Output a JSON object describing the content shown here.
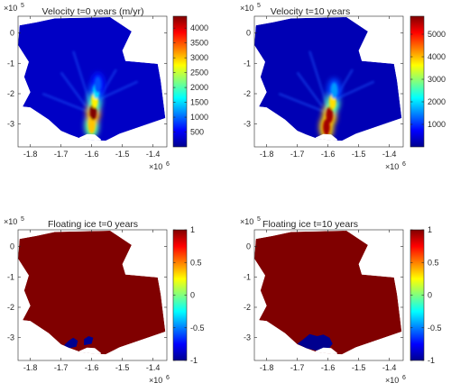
{
  "chart_data": [
    {
      "type": "heatmap",
      "title": "Velocity t=0 years (m/yr)",
      "x_exponent_label": "×10",
      "x_exponent": "6",
      "y_exponent_label": "×10",
      "y_exponent": "5",
      "xlim": [
        -1.84,
        -1.355
      ],
      "ylim": [
        -3.75,
        0.55
      ],
      "x_ticks": [
        -1.8,
        -1.7,
        -1.6,
        -1.5,
        -1.4
      ],
      "x_tick_labels": [
        "-1.8",
        "-1.7",
        "-1.6",
        "-1.5",
        "-1.4"
      ],
      "y_ticks": [
        0,
        -1,
        -2,
        -3
      ],
      "y_tick_labels": [
        "0",
        "-1",
        "-2",
        "-3"
      ],
      "colorbar": {
        "colormap": "jet",
        "range": [
          0,
          4400
        ],
        "ticks": [
          500,
          1000,
          1500,
          2000,
          2500,
          3000,
          3500,
          4000
        ],
        "tick_labels": [
          "500",
          "1000",
          "1500",
          "2000",
          "2500",
          "3000",
          "3500",
          "4000"
        ]
      },
      "field": {
        "background_value": 300,
        "streak": [
          {
            "x": -1.6,
            "y": -3.05,
            "value": 3000
          },
          {
            "x": -1.595,
            "y": -2.6,
            "value": 4400
          },
          {
            "x": -1.59,
            "y": -2.2,
            "value": 2800
          },
          {
            "x": -1.585,
            "y": -1.9,
            "value": 1500
          },
          {
            "x": -1.58,
            "y": -1.7,
            "value": 900
          }
        ]
      }
    },
    {
      "type": "heatmap",
      "title": "Velocity t=10 years",
      "x_exponent_label": "×10",
      "x_exponent": "6",
      "y_exponent_label": "×10",
      "y_exponent": "5",
      "xlim": [
        -1.84,
        -1.355
      ],
      "ylim": [
        -3.75,
        0.55
      ],
      "x_ticks": [
        -1.8,
        -1.7,
        -1.6,
        -1.5,
        -1.4
      ],
      "x_tick_labels": [
        "-1.8",
        "-1.7",
        "-1.6",
        "-1.5",
        "-1.4"
      ],
      "y_ticks": [
        0,
        -1,
        -2,
        -3
      ],
      "y_tick_labels": [
        "0",
        "-1",
        "-2",
        "-3"
      ],
      "colorbar": {
        "colormap": "jet",
        "range": [
          0,
          5800
        ],
        "ticks": [
          1000,
          2000,
          3000,
          4000,
          5000
        ],
        "tick_labels": [
          "1000",
          "2000",
          "3000",
          "4000",
          "5000"
        ]
      },
      "field": {
        "background_value": 300,
        "streak": [
          {
            "x": -1.605,
            "y": -3.1,
            "value": 5600
          },
          {
            "x": -1.595,
            "y": -2.7,
            "value": 5600
          },
          {
            "x": -1.585,
            "y": -2.25,
            "value": 3800
          },
          {
            "x": -1.58,
            "y": -1.9,
            "value": 1600
          }
        ]
      }
    },
    {
      "type": "heatmap",
      "title": "Floating ice t=0 years",
      "x_exponent_label": "×10",
      "x_exponent": "6",
      "y_exponent_label": "×10",
      "y_exponent": "5",
      "xlim": [
        -1.84,
        -1.355
      ],
      "ylim": [
        -3.75,
        0.55
      ],
      "x_ticks": [
        -1.8,
        -1.7,
        -1.6,
        -1.5,
        -1.4
      ],
      "x_tick_labels": [
        "-1.8",
        "-1.7",
        "-1.6",
        "-1.5",
        "-1.4"
      ],
      "y_ticks": [
        0,
        -1,
        -2,
        -3
      ],
      "y_tick_labels": [
        "0",
        "-1",
        "-2",
        "-3"
      ],
      "colorbar": {
        "colormap": "jet",
        "range": [
          -1,
          1
        ],
        "ticks": [
          1,
          0.5,
          0,
          -0.5,
          -1
        ],
        "tick_labels": [
          "1",
          "0.5",
          "0",
          "-0.5",
          "-1"
        ]
      },
      "field": {
        "grounded_value": 1,
        "floating_value": -1,
        "floating_region": "small patches near the calving front around x=-1.66 to -1.62"
      }
    },
    {
      "type": "heatmap",
      "title": "Floating ice t=10 years",
      "x_exponent_label": "×10",
      "x_exponent": "6",
      "y_exponent_label": "×10",
      "y_exponent": "5",
      "xlim": [
        -1.84,
        -1.355
      ],
      "ylim": [
        -3.75,
        0.55
      ],
      "x_ticks": [
        -1.8,
        -1.7,
        -1.6,
        -1.5,
        -1.4
      ],
      "x_tick_labels": [
        "-1.8",
        "-1.7",
        "-1.6",
        "-1.5",
        "-1.4"
      ],
      "y_ticks": [
        0,
        -1,
        -2,
        -3
      ],
      "y_tick_labels": [
        "0",
        "-1",
        "-2",
        "-3"
      ],
      "colorbar": {
        "colormap": "jet",
        "range": [
          -1,
          1
        ],
        "ticks": [
          1,
          0.5,
          0,
          -0.5,
          -1
        ],
        "tick_labels": [
          "1",
          "0.5",
          "0",
          "-0.5",
          "-1"
        ]
      },
      "field": {
        "grounded_value": 1,
        "floating_value": -1,
        "floating_region": "larger area near the calving front around x=-1.68 to -1.58"
      }
    }
  ],
  "domain_outline": [
    [
      -1.835,
      0.25
    ],
    [
      -1.78,
      0.35
    ],
    [
      -1.72,
      0.48
    ],
    [
      -1.54,
      0.52
    ],
    [
      -1.47,
      0.05
    ],
    [
      -1.5,
      -0.58
    ],
    [
      -1.49,
      -0.92
    ],
    [
      -1.385,
      -1.02
    ],
    [
      -1.375,
      -1.58
    ],
    [
      -1.36,
      -2.8
    ],
    [
      -1.51,
      -3.32
    ],
    [
      -1.555,
      -3.55
    ],
    [
      -1.6,
      -3.52
    ],
    [
      -1.635,
      -3.48
    ],
    [
      -1.67,
      -3.35
    ],
    [
      -1.7,
      -3.22
    ],
    [
      -1.74,
      -2.85
    ],
    [
      -1.8,
      -2.45
    ],
    [
      -1.825,
      -2.42
    ],
    [
      -1.8,
      -1.95
    ],
    [
      -1.82,
      -1.45
    ],
    [
      -1.805,
      -0.95
    ],
    [
      -1.84,
      -0.4
    ]
  ],
  "calving_hole": [
    [
      -1.645,
      -3.75
    ],
    [
      -1.64,
      -3.44
    ],
    [
      -1.615,
      -3.33
    ],
    [
      -1.59,
      -3.34
    ],
    [
      -1.57,
      -3.5
    ],
    [
      -1.575,
      -3.75
    ]
  ],
  "colors": {
    "grounded": "#800000",
    "floating": "#00008f",
    "background": "#ffffff"
  }
}
